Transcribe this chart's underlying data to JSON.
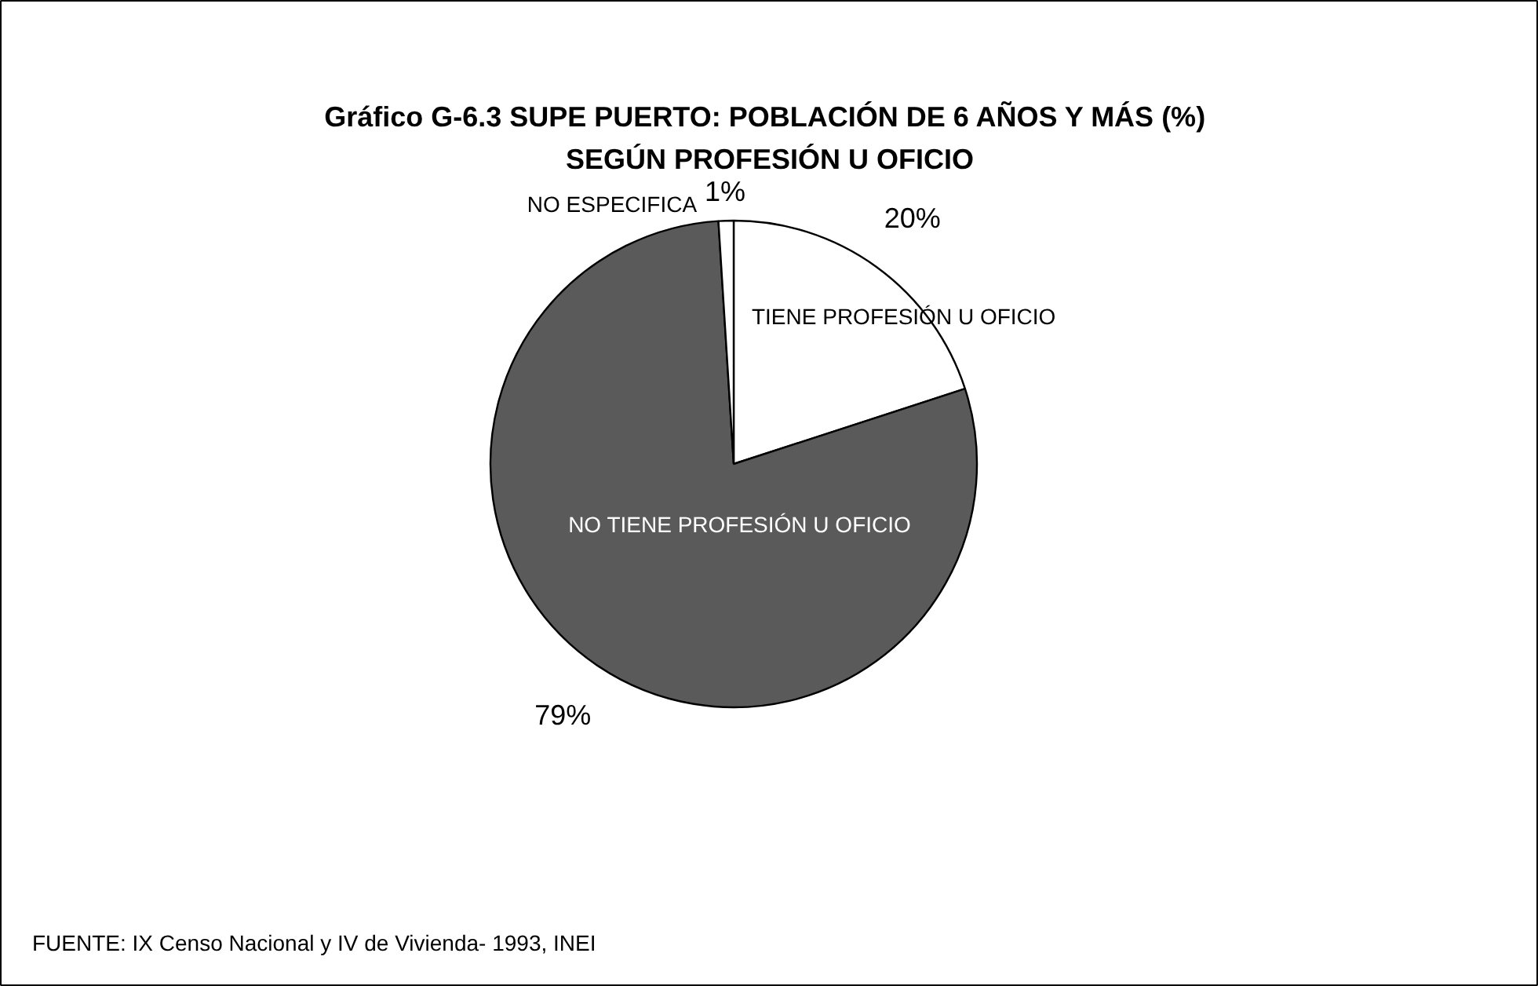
{
  "chart_data": {
    "type": "pie",
    "title": "Gráfico G-6.3  SUPE PUERTO: POBLACIÓN DE 6 AÑOS Y MÁS (%)\nSEGÚN PROFESIÓN U OFICIO",
    "categories": [
      "TIENE PROFESIÓN U OFICIO",
      "NO TIENE PROFESIÓN U OFICIO",
      "NO ESPECIFICA"
    ],
    "values": [
      20,
      79,
      1
    ],
    "colors": [
      "#ffffff",
      "#5a5a5a",
      "#ffffff"
    ],
    "value_labels": [
      "20%",
      "79%",
      "1%"
    ],
    "annotations": [
      "FUENTE: IX Censo Nacional y IV de Vivienda- 1993, INEI"
    ]
  }
}
